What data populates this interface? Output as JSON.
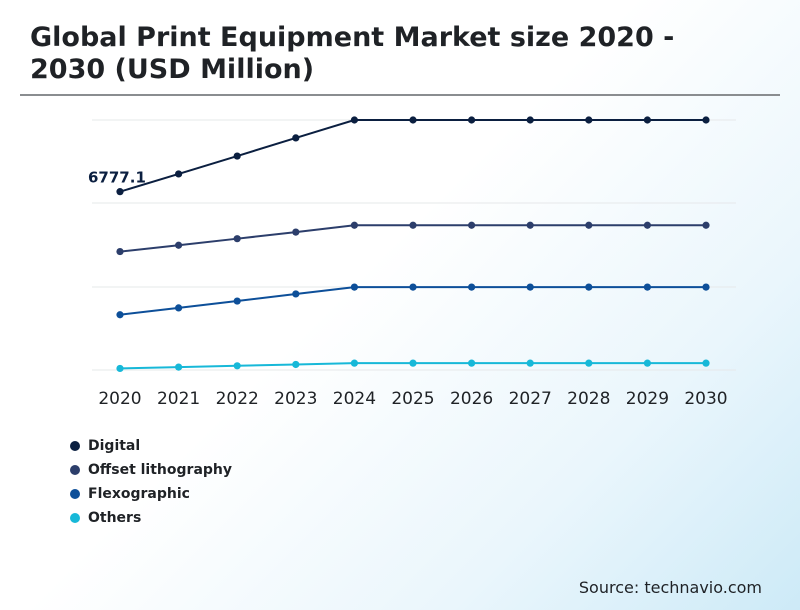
{
  "chart_data": {
    "type": "line",
    "title": "Global Print Equipment Market size 2020 - 2030 (USD Million)",
    "categories": [
      "2020",
      "2021",
      "2022",
      "2023",
      "2024",
      "2025",
      "2026",
      "2027",
      "2028",
      "2029",
      "2030"
    ],
    "ylim": [
      0,
      12000
    ],
    "grid": true,
    "legend_position": "bottom-left",
    "series": [
      {
        "name": "Digital",
        "color": "#0b1f40",
        "values": [
          6777.1,
          7450,
          8130,
          8820,
          9500,
          9500,
          9500,
          9500,
          9500,
          9500,
          9500
        ]
      },
      {
        "name": "Offset lithography",
        "color": "#2c3e6b",
        "values": [
          4500,
          4740,
          4990,
          5240,
          5500,
          5500,
          5500,
          5500,
          5500,
          5500,
          5500
        ]
      },
      {
        "name": "Flexographic",
        "color": "#0d4f99",
        "values": [
          2100,
          2360,
          2620,
          2890,
          3150,
          3150,
          3150,
          3150,
          3150,
          3150,
          3150
        ]
      },
      {
        "name": "Others",
        "color": "#17b8d8",
        "values": [
          60,
          110,
          160,
          210,
          260,
          260,
          260,
          260,
          260,
          260,
          260
        ]
      }
    ],
    "annotations": [
      {
        "text": "6777.1",
        "series": 0,
        "index": 0
      }
    ]
  },
  "source": "Source: technavio.com"
}
